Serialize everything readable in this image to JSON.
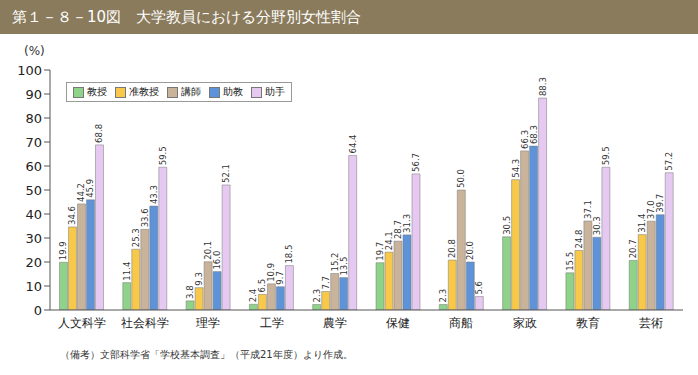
{
  "chart_data": {
    "type": "bar",
    "title": "第１－８－10図　大学教員における分野別女性割合",
    "y_label": "(%)",
    "annotations": [
      "（備考）文部科学省「学校基本調査」（平成21年度）より作成。"
    ],
    "categories": [
      "人文科学",
      "社会科学",
      "理学",
      "工学",
      "農学",
      "保健",
      "商船",
      "家政",
      "教育",
      "芸術"
    ],
    "series": [
      {
        "name": "教授",
        "color": "#8fd28a",
        "values": [
          19.9,
          11.4,
          3.8,
          2.4,
          2.3,
          19.7,
          2.3,
          30.5,
          15.5,
          20.7
        ],
        "value_labels": [
          "19.9",
          "11.4",
          "3.8",
          "2.4",
          "2.3",
          "19.7",
          "2.3",
          "30.5",
          "15.5",
          "20.7"
        ]
      },
      {
        "name": "准教授",
        "color": "#f7c84a",
        "values": [
          34.6,
          25.3,
          9.3,
          6.5,
          7.7,
          24.1,
          20.8,
          54.3,
          24.8,
          31.4
        ],
        "value_labels": [
          "34.6",
          "25.3",
          "9.3",
          "6.5",
          "7.7",
          "24.1",
          "20.8",
          "54.3",
          "24.8",
          "31.4"
        ]
      },
      {
        "name": "講師",
        "color": "#c9b49b",
        "values": [
          44.2,
          33.6,
          20.1,
          10.9,
          15.2,
          28.7,
          50.0,
          66.3,
          37.1,
          37.0
        ],
        "value_labels": [
          "44.2",
          "33.6",
          "20.1",
          "10.9",
          "15.2",
          "28.7",
          "50.0",
          "66.3",
          "37.1",
          "37.0"
        ]
      },
      {
        "name": "助教",
        "color": "#5f93d9",
        "values": [
          45.9,
          43.3,
          16.0,
          9.7,
          13.5,
          31.3,
          20.0,
          68.3,
          30.3,
          39.7
        ],
        "value_labels": [
          "45.9",
          "43.3",
          "16.0",
          "9.7",
          "13.5",
          "31.3",
          "20.0",
          "68.3",
          "30.3",
          "39.7"
        ]
      },
      {
        "name": "助手",
        "color": "#e6c9f0",
        "values": [
          68.8,
          59.5,
          52.1,
          18.5,
          64.4,
          56.7,
          5.6,
          88.3,
          59.5,
          57.2
        ],
        "value_labels": [
          "68.8",
          "59.5",
          "52.1",
          "18.5",
          "64.4",
          "56.7",
          "5.6",
          "88.3",
          "59.5",
          "57.2"
        ]
      }
    ],
    "ylim": [
      0,
      100
    ],
    "yticks": [
      0,
      10,
      20,
      30,
      40,
      50,
      60,
      70,
      80,
      90,
      100
    ],
    "grid": false,
    "legend": "upper left",
    "data_labels": true
  }
}
